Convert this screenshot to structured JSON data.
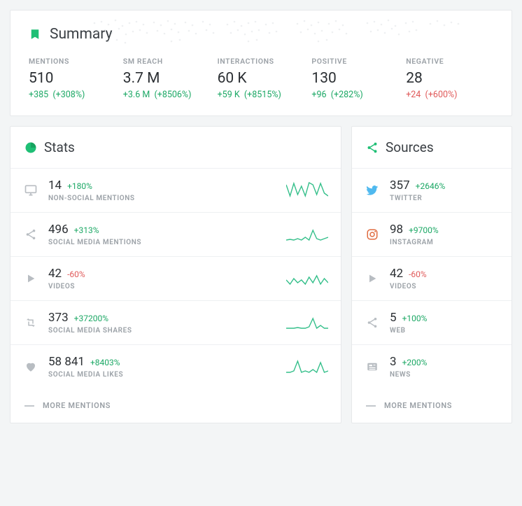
{
  "colors": {
    "accent": "#1fbf75",
    "positive": "#1ca865",
    "negative": "#e05a5a",
    "muted": "#9aa0a6",
    "text": "#2b2f33",
    "card_bg": "#ffffff",
    "page_bg": "#f3f5f6",
    "border": "#eef0f2",
    "spark": "#34bf8a",
    "icon_grey": "#b8bdc2",
    "twitter": "#4fb9ef",
    "instagram": "#e06b3f"
  },
  "summary": {
    "title": "Summary",
    "metrics": [
      {
        "label": "MENTIONS",
        "value": "510",
        "delta": "+385",
        "delta_pct": "(+308%)",
        "tone": "pos"
      },
      {
        "label": "SM REACH",
        "value": "3.7 M",
        "delta": "+3.6 M",
        "delta_pct": "(+8506%)",
        "tone": "pos"
      },
      {
        "label": "INTERACTIONS",
        "value": "60 K",
        "delta": "+59 K",
        "delta_pct": "(+8515%)",
        "tone": "pos"
      },
      {
        "label": "POSITIVE",
        "value": "130",
        "delta": "+96",
        "delta_pct": "(+282%)",
        "tone": "pos"
      },
      {
        "label": "NEGATIVE",
        "value": "28",
        "delta": "+24",
        "delta_pct": "(+600%)",
        "tone": "neg"
      }
    ]
  },
  "stats": {
    "title": "Stats",
    "rows": [
      {
        "icon": "monitor",
        "value": "14",
        "delta": "+180%",
        "tone": "pos",
        "sub": "NON-SOCIAL MENTIONS",
        "spark": [
          6,
          22,
          4,
          20,
          8,
          22,
          3,
          6,
          20,
          4,
          18,
          22
        ]
      },
      {
        "icon": "share",
        "value": "496",
        "delta": "+313%",
        "tone": "pos",
        "sub": "SOCIAL MEDIA MENTIONS",
        "spark": [
          22,
          21,
          22,
          20,
          22,
          18,
          22,
          8,
          20,
          22,
          20,
          18
        ]
      },
      {
        "icon": "play",
        "value": "42",
        "delta": "-60%",
        "tone": "neg",
        "sub": "VIDEOS",
        "spark": [
          16,
          22,
          14,
          20,
          16,
          22,
          12,
          20,
          10,
          22,
          14,
          20
        ]
      },
      {
        "icon": "retweet",
        "value": "373",
        "delta": "+37200%",
        "tone": "pos",
        "sub": "SOCIAL MEDIA SHARES",
        "spark": [
          22,
          22,
          22,
          21,
          22,
          22,
          20,
          8,
          22,
          18,
          22,
          22
        ]
      },
      {
        "icon": "heart",
        "value": "58 841",
        "delta": "+8403%",
        "tone": "pos",
        "sub": "SOCIAL MEDIA LIKES",
        "spark": [
          22,
          22,
          20,
          6,
          22,
          20,
          22,
          18,
          22,
          8,
          22,
          20
        ]
      }
    ],
    "more": "MORE MENTIONS"
  },
  "sources": {
    "title": "Sources",
    "rows": [
      {
        "icon": "twitter",
        "value": "357",
        "delta": "+2646%",
        "tone": "pos",
        "sub": "TWITTER"
      },
      {
        "icon": "instagram",
        "value": "98",
        "delta": "+9700%",
        "tone": "pos",
        "sub": "INSTAGRAM"
      },
      {
        "icon": "play",
        "value": "42",
        "delta": "-60%",
        "tone": "neg",
        "sub": "VIDEOS"
      },
      {
        "icon": "share",
        "value": "5",
        "delta": "+100%",
        "tone": "pos",
        "sub": "WEB"
      },
      {
        "icon": "news",
        "value": "3",
        "delta": "+200%",
        "tone": "pos",
        "sub": "NEWS"
      }
    ],
    "more": "MORE MENTIONS"
  }
}
